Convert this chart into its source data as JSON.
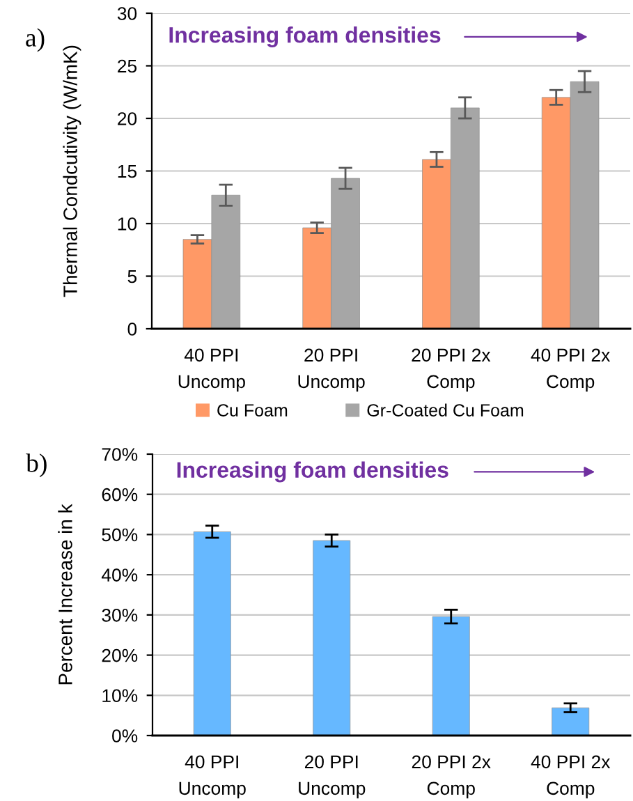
{
  "chart_data": [
    {
      "type": "bar",
      "title": "a)",
      "ylabel": "Thermal Condcutivity (W/mK)",
      "categories": [
        "40 PPI\nUncomp",
        "20 PPI\nUncomp",
        "20 PPI 2x\nComp",
        "40 PPI 2x\nComp"
      ],
      "series": [
        {
          "name": "Cu Foam",
          "color": "#ff9966",
          "values": [
            8.5,
            9.6,
            16.1,
            22.0
          ],
          "errors": [
            0.4,
            0.5,
            0.7,
            0.7
          ]
        },
        {
          "name": "Gr-Coated Cu Foam",
          "color": "#a6a6a6",
          "values": [
            12.7,
            14.3,
            21.0,
            23.5
          ],
          "errors": [
            1.0,
            1.0,
            1.0,
            1.0
          ]
        }
      ],
      "ylim": [
        0,
        30
      ],
      "yticks": [
        0,
        5,
        10,
        15,
        20,
        25,
        30
      ],
      "grid": "y",
      "legend": "bottom",
      "annotations": [
        "Increasing foam densities"
      ]
    },
    {
      "type": "bar",
      "title": "b)",
      "ylabel": "Percent Increase in k",
      "categories": [
        "40 PPI\nUncomp",
        "20 PPI\nUncomp",
        "20 PPI 2x\nComp",
        "40 PPI 2x\nComp"
      ],
      "series": [
        {
          "color": "#66b8ff",
          "values": [
            50.7,
            48.5,
            29.6,
            6.9
          ],
          "errors": [
            1.5,
            1.5,
            1.7,
            1.1
          ]
        }
      ],
      "ylim": [
        0,
        70
      ],
      "yticks": [
        {
          "value": 0,
          "label": "0%"
        },
        {
          "value": 10,
          "label": "10%"
        },
        {
          "value": 20,
          "label": "20%"
        },
        {
          "value": 30,
          "label": "30%"
        },
        {
          "value": 40,
          "label": "40%"
        },
        {
          "value": 50,
          "label": "50%"
        },
        {
          "value": 60,
          "label": "60%"
        },
        {
          "value": 70,
          "label": "70%"
        }
      ],
      "grid": "y",
      "annotations": [
        "Increasing foam densities"
      ]
    }
  ]
}
